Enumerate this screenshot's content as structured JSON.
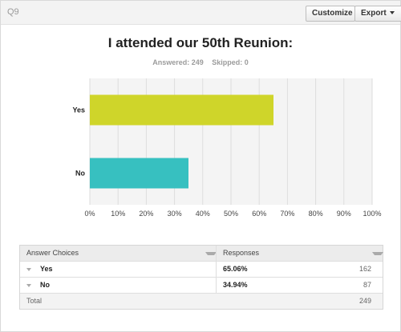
{
  "question": {
    "label": "Q9"
  },
  "toolbar": {
    "customize_label": "Customize",
    "export_label": "Export"
  },
  "stats": {
    "answered": "Answered: 249",
    "skipped": "Skipped: 0"
  },
  "colors": {
    "yes": "#cfd52a",
    "no": "#37c0c0",
    "grid": "#dddddd",
    "plot_bg": "#f4f4f4"
  },
  "chart_data": {
    "type": "bar",
    "orientation": "horizontal",
    "title": "I attended our 50th Reunion:",
    "categories": [
      "Yes",
      "No"
    ],
    "values": [
      65.06,
      34.94
    ],
    "xlim": [
      0,
      100
    ],
    "xticks": [
      "0%",
      "10%",
      "20%",
      "30%",
      "40%",
      "50%",
      "60%",
      "70%",
      "80%",
      "90%",
      "100%"
    ],
    "grid": true,
    "legend": "none"
  },
  "table": {
    "headers": {
      "choices": "Answer Choices",
      "responses": "Responses"
    },
    "rows": [
      {
        "choice": "Yes",
        "percent": "65.06%",
        "count": "162"
      },
      {
        "choice": "No",
        "percent": "34.94%",
        "count": "87"
      }
    ],
    "total_label": "Total",
    "total_value": "249"
  }
}
